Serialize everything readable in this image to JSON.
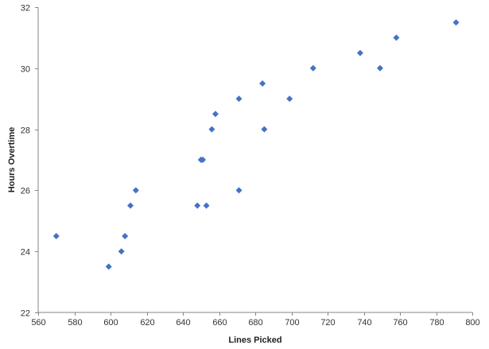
{
  "chart_data": {
    "type": "scatter",
    "title": "",
    "xlabel": "Lines Picked",
    "ylabel": "Hours Overtime",
    "xlim": [
      560,
      800
    ],
    "ylim": [
      22,
      32
    ],
    "x_ticks": [
      560,
      580,
      600,
      620,
      640,
      660,
      680,
      700,
      720,
      740,
      760,
      780,
      800
    ],
    "y_ticks": [
      22,
      24,
      26,
      28,
      30,
      32
    ],
    "grid": false,
    "legend": "none",
    "marker": "diamond",
    "marker_color": "#4472C4",
    "axis_color": "#868686",
    "series": [
      {
        "points": [
          {
            "x": 570,
            "y": 24.5
          },
          {
            "x": 599,
            "y": 23.5
          },
          {
            "x": 606,
            "y": 24.0
          },
          {
            "x": 608,
            "y": 24.5
          },
          {
            "x": 611,
            "y": 25.5
          },
          {
            "x": 614,
            "y": 26.0
          },
          {
            "x": 648,
            "y": 25.5
          },
          {
            "x": 650,
            "y": 27.0
          },
          {
            "x": 651,
            "y": 27.0
          },
          {
            "x": 653,
            "y": 25.5
          },
          {
            "x": 656,
            "y": 28.0
          },
          {
            "x": 658,
            "y": 28.5
          },
          {
            "x": 671,
            "y": 29.0
          },
          {
            "x": 671,
            "y": 26.0
          },
          {
            "x": 684,
            "y": 29.5
          },
          {
            "x": 685,
            "y": 28.0
          },
          {
            "x": 699,
            "y": 29.0
          },
          {
            "x": 712,
            "y": 30.0
          },
          {
            "x": 738,
            "y": 30.5
          },
          {
            "x": 749,
            "y": 30.0
          },
          {
            "x": 758,
            "y": 31.0
          },
          {
            "x": 791,
            "y": 31.5
          }
        ]
      }
    ]
  }
}
